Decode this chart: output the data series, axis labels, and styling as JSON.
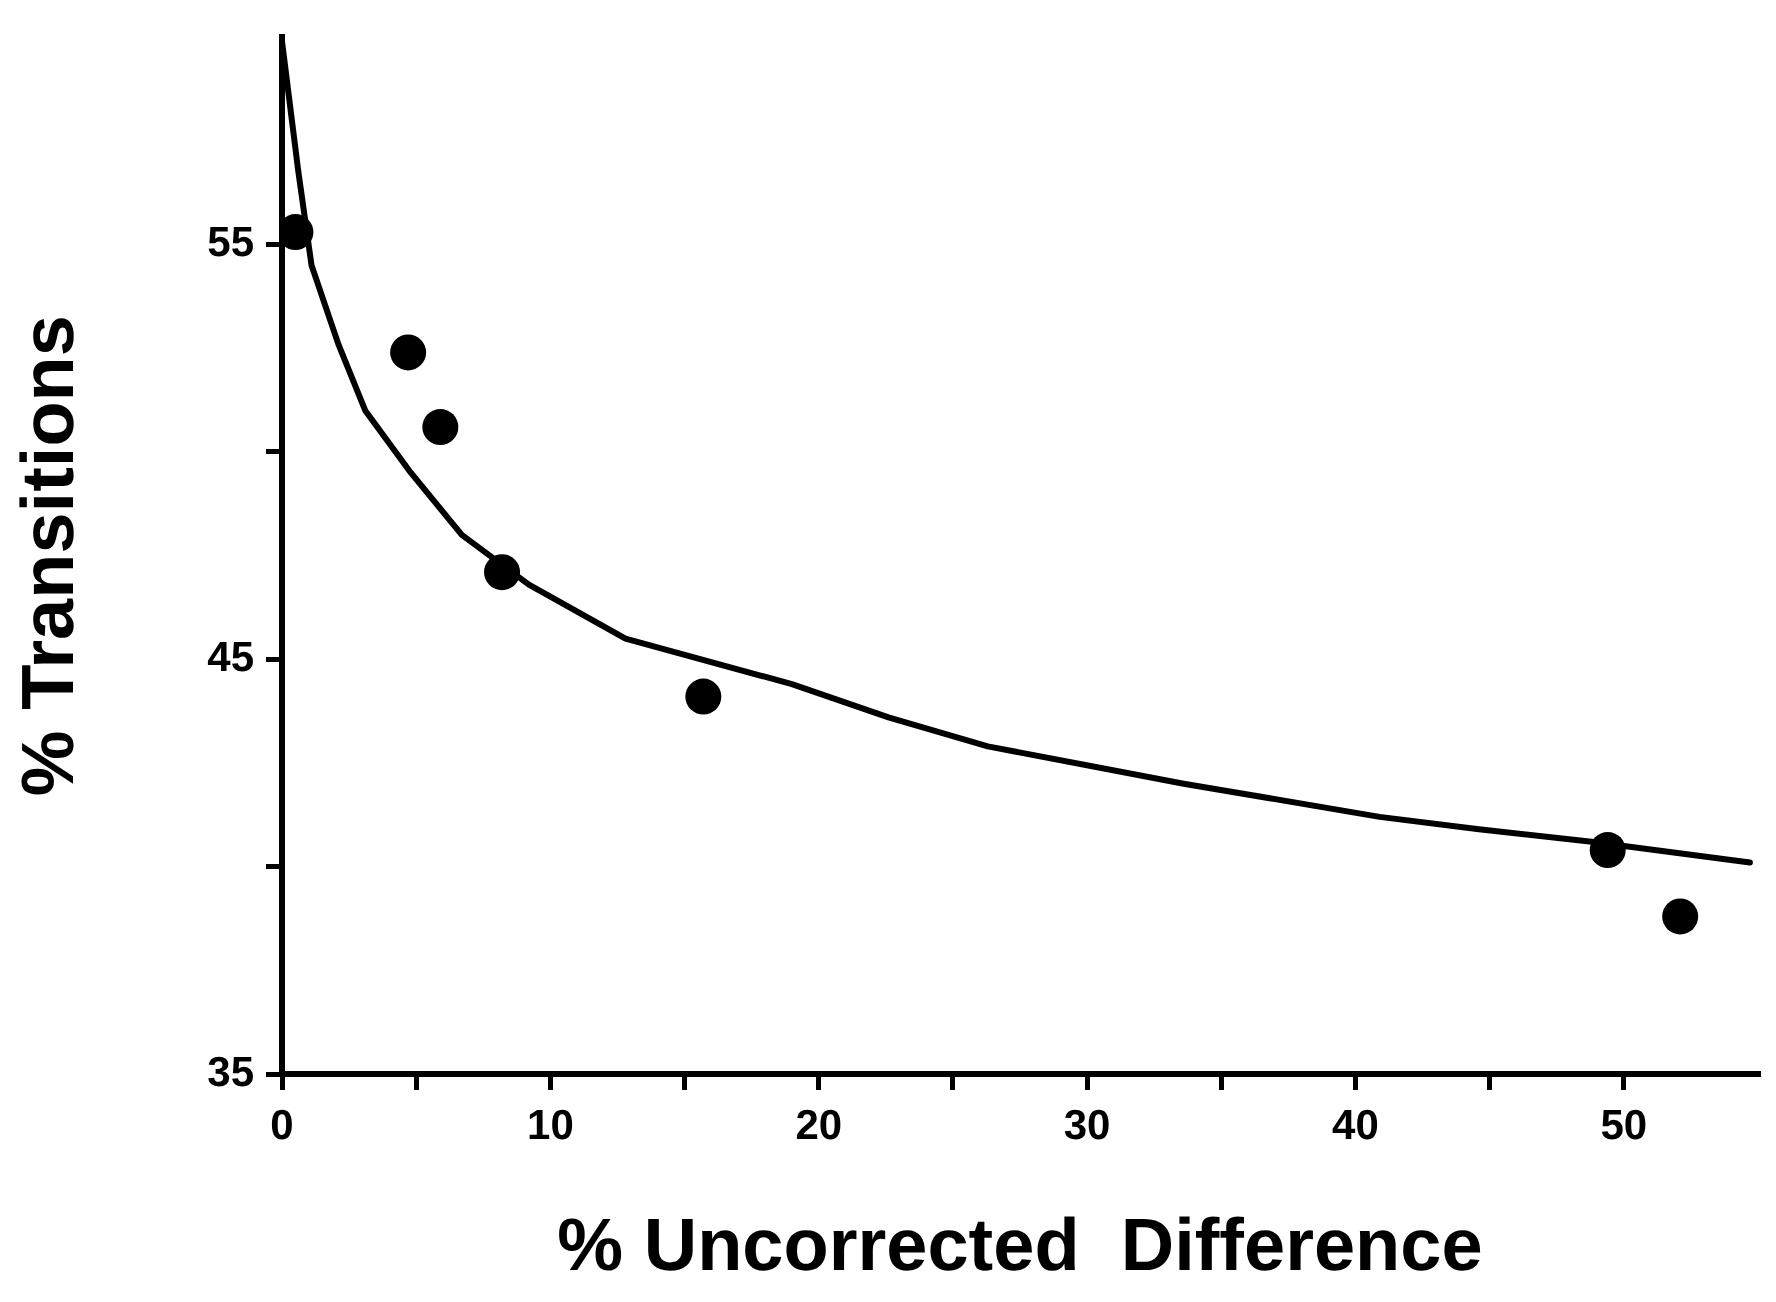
{
  "chart_data": {
    "type": "scatter",
    "xlabel": "% Uncorrected  Difference",
    "ylabel": "% Transitions",
    "xlim": [
      0,
      55
    ],
    "ylim": [
      35,
      60
    ],
    "xticks": [
      0,
      {
        "value": 5,
        "label": null
      },
      10,
      {
        "value": 15,
        "label": null
      },
      20,
      {
        "value": 25,
        "label": null
      },
      30,
      {
        "value": 35,
        "label": null
      },
      40,
      {
        "value": 45,
        "label": null
      },
      50
    ],
    "yticks": [
      35,
      {
        "value": 40,
        "label": null
      },
      45,
      {
        "value": 50,
        "label": null
      },
      55
    ],
    "series": [
      {
        "marker": "circle",
        "color": "#000000",
        "x": [
          0.5,
          4.7,
          5.9,
          8.2,
          15.7,
          49.4,
          52.1
        ],
        "values": [
          55.3,
          52.4,
          50.6,
          47.1,
          44.1,
          40.4,
          38.8
        ]
      },
      {
        "type": "line",
        "marker": "none",
        "line_style": "solid",
        "color": "#000000",
        "x": [
          0,
          0.6,
          1.1,
          2.1,
          3.1,
          4.8,
          6.7,
          9.2,
          12.8,
          19,
          22.6,
          26.3,
          33.6,
          40.9,
          44.6,
          48.8,
          54.7
        ],
        "values": [
          59.9,
          56.8,
          54.5,
          52.6,
          51,
          49.5,
          48,
          46.8,
          45.5,
          44.4,
          43.6,
          42.9,
          42,
          41.2,
          40.9,
          40.6,
          40.1
        ]
      }
    ]
  }
}
